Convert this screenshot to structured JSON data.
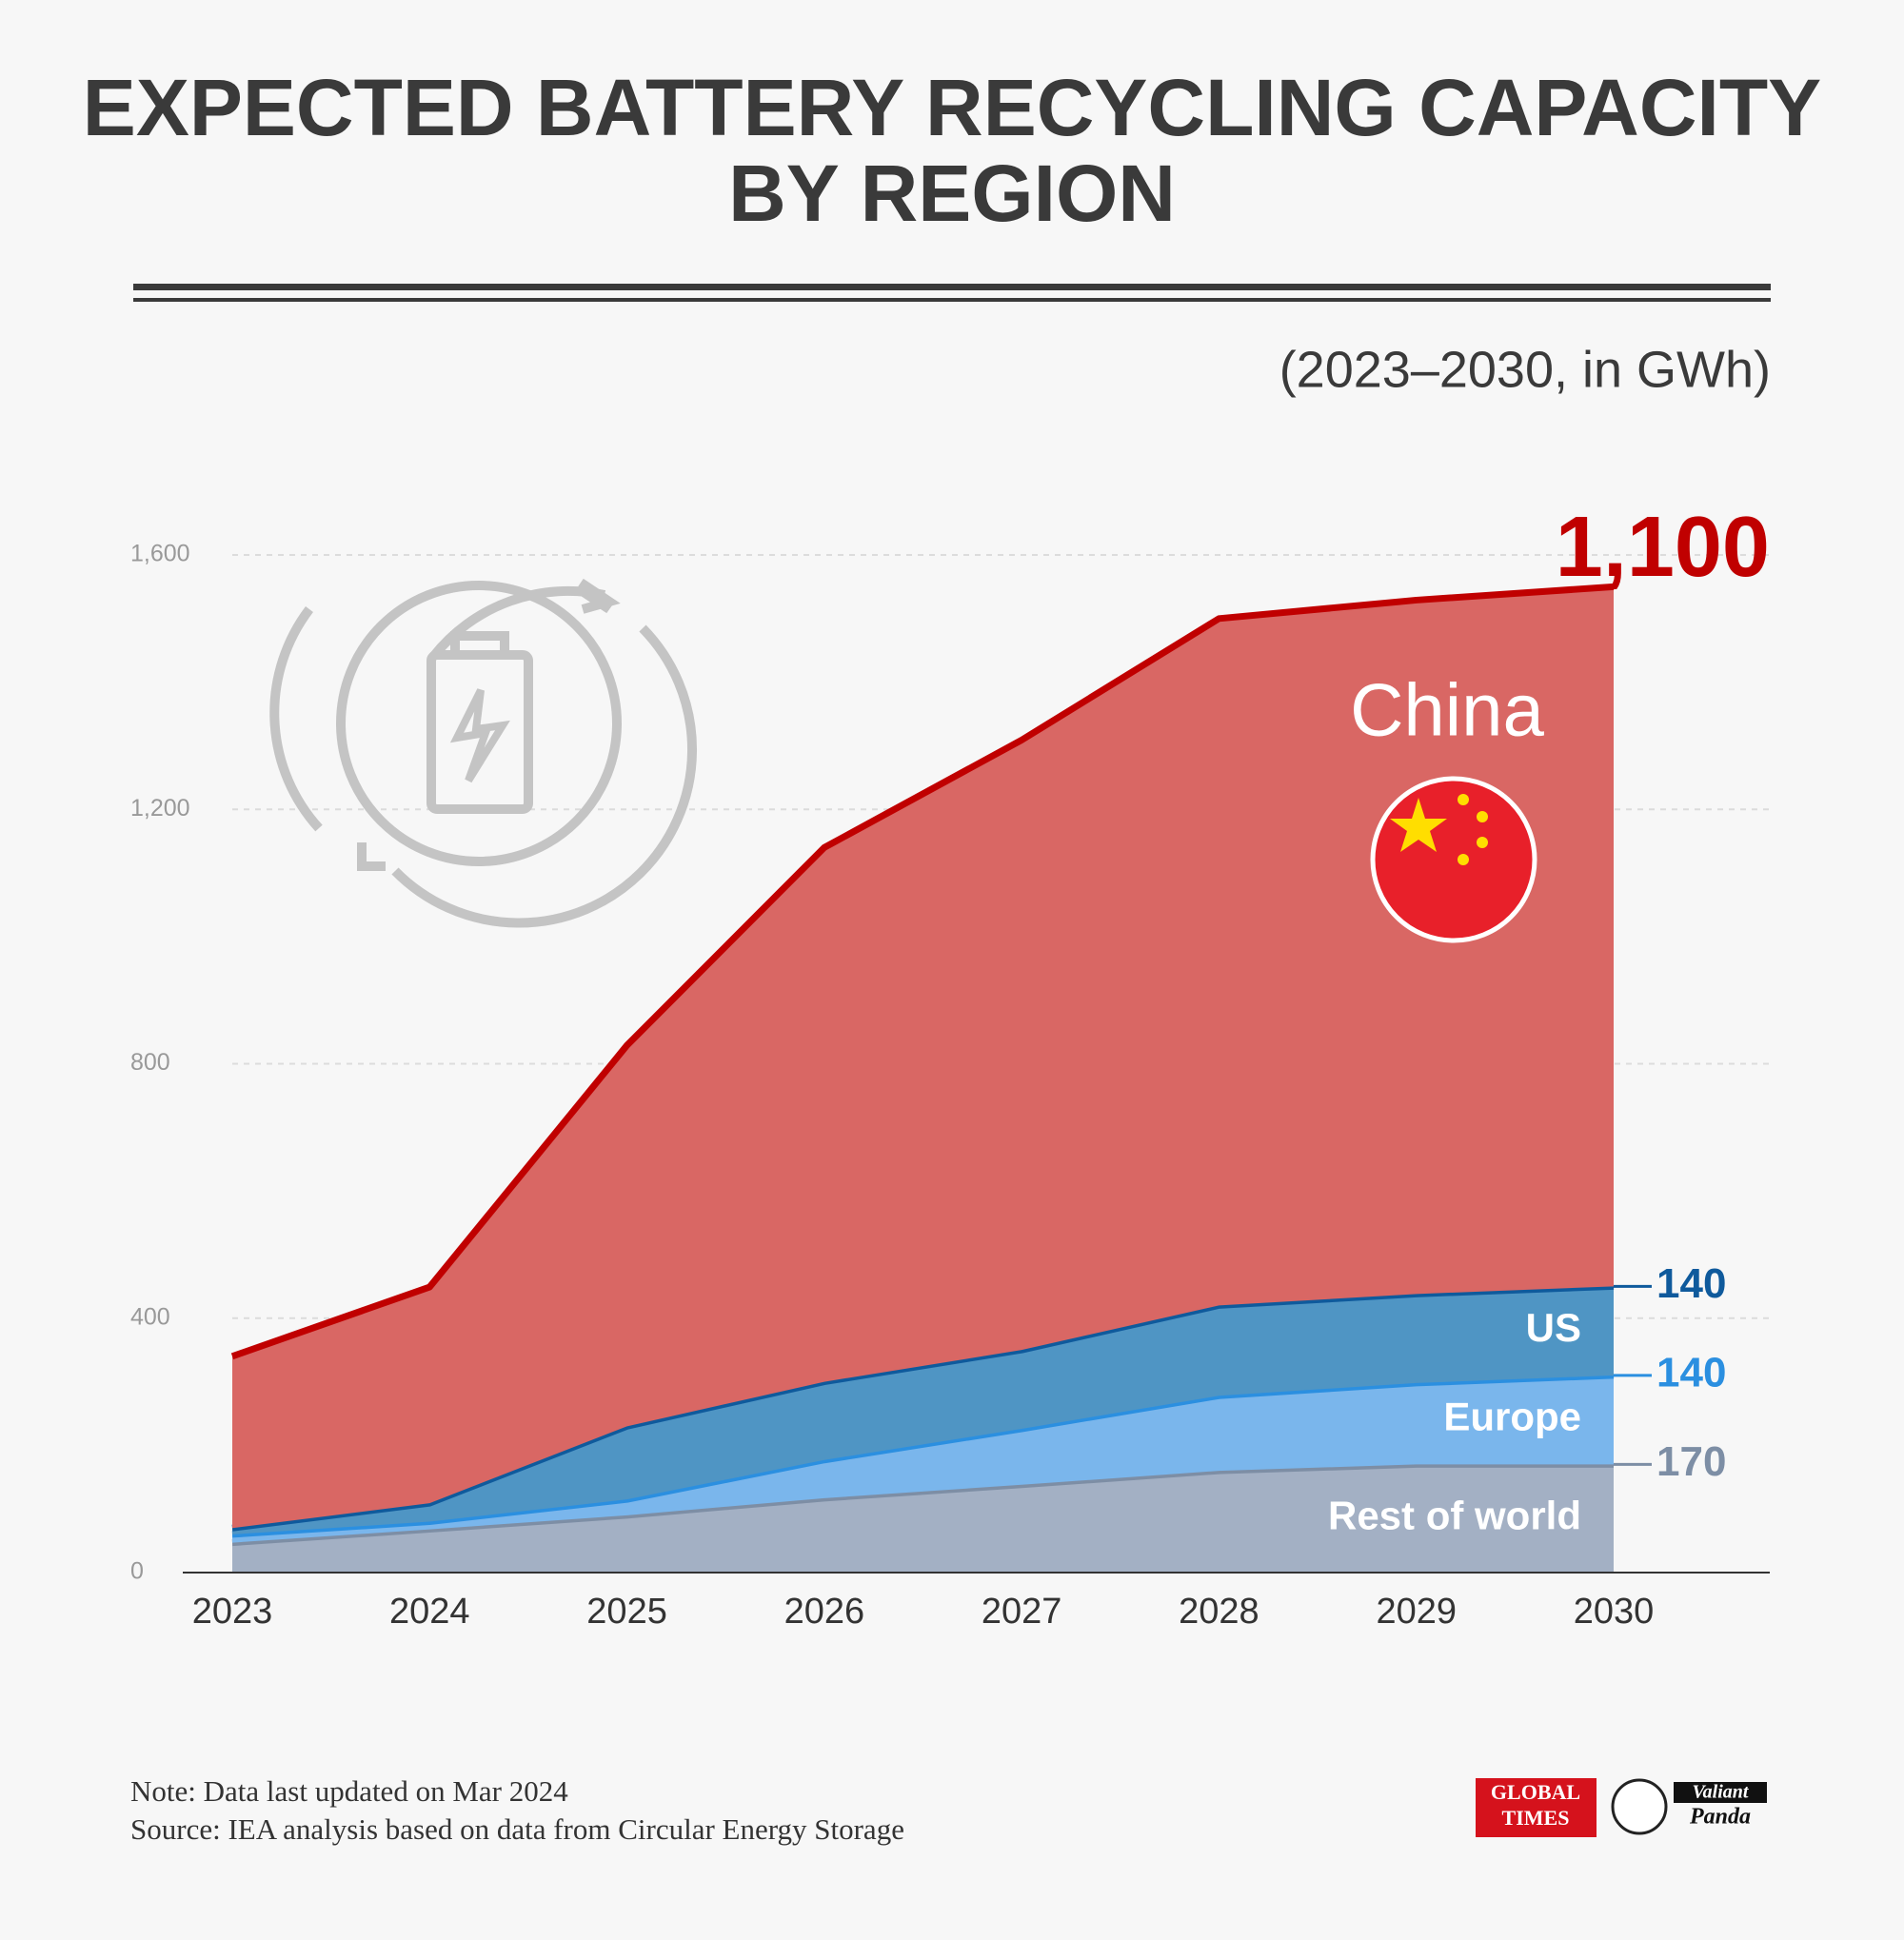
{
  "chart_data": {
    "type": "stacked_area",
    "title": "EXPECTED BATTERY RECYCLING CAPACITY BY REGION",
    "subtitle": "(2023–2030, in GWh)",
    "categories": [
      "2023",
      "2024",
      "2025",
      "2026",
      "2027",
      "2028",
      "2029",
      "2030"
    ],
    "series": [
      {
        "name": "China",
        "color": "#d96764",
        "line_color": "#c00000",
        "values": [
          270,
          340,
          599,
          840,
          959,
          1080,
          1091,
          1100
        ],
        "value_labels": [
          null,
          null,
          null,
          null,
          null,
          null,
          null,
          "1,100"
        ]
      },
      {
        "name": "US",
        "color": "#4f95c4",
        "line_color": "#0f5a9c",
        "values": [
          10,
          29,
          115,
          123,
          124,
          142,
          140,
          140
        ]
      },
      {
        "name": "Europe",
        "color": "#7ab6ec",
        "line_color": "#2b8fe0",
        "values": [
          13,
          12,
          25,
          60,
          88,
          118,
          128,
          140
        ]
      },
      {
        "name": "Rest of world",
        "color": "#a3b0c4",
        "line_color": "#7d8ea5",
        "values": [
          47,
          68,
          90,
          117,
          138,
          160,
          170,
          170
        ]
      }
    ],
    "ylim": [
      0,
      1600
    ],
    "yticks": [
      0,
      400,
      800,
      {
        "value": 1200,
        "label": "1,200"
      },
      {
        "value": 1600,
        "label": "1,600"
      }
    ],
    "grid": true,
    "note": "Note: Data last updated on Mar 2024",
    "source": "Source: IEA analysis based on data from Circular Energy Storage",
    "logos": [
      "GLOBAL",
      "TIMES",
      "Valiant",
      "Panda"
    ]
  }
}
